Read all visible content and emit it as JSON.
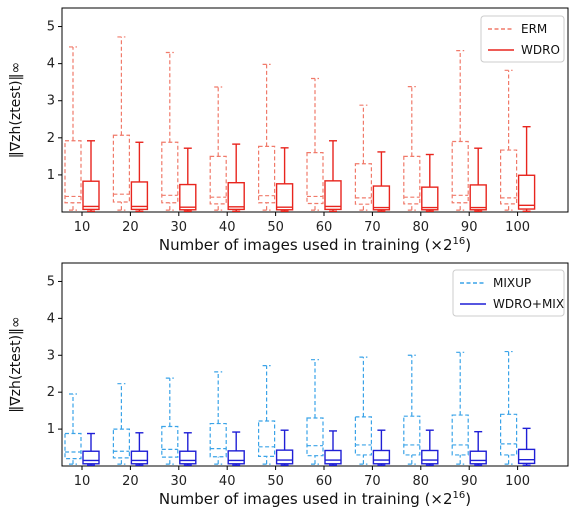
{
  "chart_data": [
    {
      "type": "box",
      "xlabel": "Number of images used in training (×2",
      "xlabel_sup": "16",
      "xlabel_end": ")",
      "ylabel": "‖∇zh(ztest)‖∞",
      "ylim": [
        0,
        5.5
      ],
      "yticks": [
        "1",
        "2",
        "3",
        "4",
        "5"
      ],
      "categories": [
        "10",
        "20",
        "30",
        "40",
        "50",
        "60",
        "70",
        "80",
        "90",
        "100"
      ],
      "legend_position": "top-right",
      "series": [
        {
          "name": "ERM",
          "color": "#f07a6a",
          "style": "dashed",
          "boxes": [
            {
              "min": 0.05,
              "q1": 0.25,
              "median": 0.42,
              "q3": 1.92,
              "max": 4.45
            },
            {
              "min": 0.05,
              "q1": 0.27,
              "median": 0.48,
              "q3": 2.07,
              "max": 4.72
            },
            {
              "min": 0.05,
              "q1": 0.25,
              "median": 0.45,
              "q3": 1.88,
              "max": 4.3
            },
            {
              "min": 0.05,
              "q1": 0.22,
              "median": 0.4,
              "q3": 1.5,
              "max": 3.37
            },
            {
              "min": 0.05,
              "q1": 0.25,
              "median": 0.44,
              "q3": 1.77,
              "max": 3.98
            },
            {
              "min": 0.05,
              "q1": 0.23,
              "median": 0.42,
              "q3": 1.6,
              "max": 3.6
            },
            {
              "min": 0.05,
              "q1": 0.21,
              "median": 0.38,
              "q3": 1.3,
              "max": 2.88
            },
            {
              "min": 0.05,
              "q1": 0.22,
              "median": 0.4,
              "q3": 1.5,
              "max": 3.38
            },
            {
              "min": 0.05,
              "q1": 0.25,
              "median": 0.45,
              "q3": 1.9,
              "max": 4.35
            },
            {
              "min": 0.05,
              "q1": 0.22,
              "median": 0.38,
              "q3": 1.67,
              "max": 3.82
            }
          ]
        },
        {
          "name": "WDRO",
          "color": "#e8251e",
          "style": "solid",
          "boxes": [
            {
              "min": 0.02,
              "q1": 0.07,
              "median": 0.15,
              "q3": 0.83,
              "max": 1.92
            },
            {
              "min": 0.02,
              "q1": 0.07,
              "median": 0.15,
              "q3": 0.81,
              "max": 1.88
            },
            {
              "min": 0.02,
              "q1": 0.06,
              "median": 0.13,
              "q3": 0.74,
              "max": 1.72
            },
            {
              "min": 0.02,
              "q1": 0.07,
              "median": 0.14,
              "q3": 0.79,
              "max": 1.83
            },
            {
              "min": 0.02,
              "q1": 0.06,
              "median": 0.13,
              "q3": 0.76,
              "max": 1.73
            },
            {
              "min": 0.02,
              "q1": 0.07,
              "median": 0.15,
              "q3": 0.84,
              "max": 1.92
            },
            {
              "min": 0.02,
              "q1": 0.06,
              "median": 0.12,
              "q3": 0.7,
              "max": 1.62
            },
            {
              "min": 0.02,
              "q1": 0.06,
              "median": 0.12,
              "q3": 0.67,
              "max": 1.55
            },
            {
              "min": 0.02,
              "q1": 0.06,
              "median": 0.12,
              "q3": 0.73,
              "max": 1.72
            },
            {
              "min": 0.02,
              "q1": 0.08,
              "median": 0.18,
              "q3": 0.99,
              "max": 2.3
            }
          ]
        }
      ]
    },
    {
      "type": "box",
      "xlabel": "Number of images used in training (×2",
      "xlabel_sup": "16",
      "xlabel_end": ")",
      "ylabel": "‖∇zh(ztest)‖∞",
      "ylim": [
        0,
        5.5
      ],
      "yticks": [
        "1",
        "2",
        "3",
        "4",
        "5"
      ],
      "categories": [
        "10",
        "20",
        "30",
        "40",
        "50",
        "60",
        "70",
        "80",
        "90",
        "100"
      ],
      "legend_position": "top-right",
      "series": [
        {
          "name": "MIXUP",
          "color": "#3aa3e8",
          "style": "dashed",
          "boxes": [
            {
              "min": 0.05,
              "q1": 0.2,
              "median": 0.38,
              "q3": 0.88,
              "max": 1.95
            },
            {
              "min": 0.05,
              "q1": 0.22,
              "median": 0.4,
              "q3": 1.0,
              "max": 2.23
            },
            {
              "min": 0.05,
              "q1": 0.24,
              "median": 0.45,
              "q3": 1.07,
              "max": 2.38
            },
            {
              "min": 0.05,
              "q1": 0.25,
              "median": 0.47,
              "q3": 1.15,
              "max": 2.55
            },
            {
              "min": 0.05,
              "q1": 0.26,
              "median": 0.52,
              "q3": 1.22,
              "max": 2.72
            },
            {
              "min": 0.05,
              "q1": 0.28,
              "median": 0.55,
              "q3": 1.3,
              "max": 2.88
            },
            {
              "min": 0.05,
              "q1": 0.3,
              "median": 0.57,
              "q3": 1.33,
              "max": 2.95
            },
            {
              "min": 0.05,
              "q1": 0.3,
              "median": 0.57,
              "q3": 1.35,
              "max": 3.0
            },
            {
              "min": 0.05,
              "q1": 0.3,
              "median": 0.57,
              "q3": 1.38,
              "max": 3.08
            },
            {
              "min": 0.05,
              "q1": 0.3,
              "median": 0.6,
              "q3": 1.4,
              "max": 3.1
            }
          ]
        },
        {
          "name": "WDRO+MIX",
          "color": "#1f1fd6",
          "style": "solid",
          "boxes": [
            {
              "min": 0.02,
              "q1": 0.06,
              "median": 0.15,
              "q3": 0.4,
              "max": 0.88
            },
            {
              "min": 0.02,
              "q1": 0.06,
              "median": 0.15,
              "q3": 0.4,
              "max": 0.9
            },
            {
              "min": 0.02,
              "q1": 0.06,
              "median": 0.15,
              "q3": 0.4,
              "max": 0.9
            },
            {
              "min": 0.02,
              "q1": 0.06,
              "median": 0.15,
              "q3": 0.41,
              "max": 0.92
            },
            {
              "min": 0.02,
              "q1": 0.06,
              "median": 0.16,
              "q3": 0.43,
              "max": 0.97
            },
            {
              "min": 0.02,
              "q1": 0.06,
              "median": 0.16,
              "q3": 0.42,
              "max": 0.95
            },
            {
              "min": 0.02,
              "q1": 0.06,
              "median": 0.16,
              "q3": 0.42,
              "max": 0.97
            },
            {
              "min": 0.02,
              "q1": 0.06,
              "median": 0.16,
              "q3": 0.42,
              "max": 0.97
            },
            {
              "min": 0.02,
              "q1": 0.06,
              "median": 0.15,
              "q3": 0.4,
              "max": 0.93
            },
            {
              "min": 0.02,
              "q1": 0.07,
              "median": 0.17,
              "q3": 0.45,
              "max": 1.02
            }
          ]
        }
      ]
    }
  ]
}
